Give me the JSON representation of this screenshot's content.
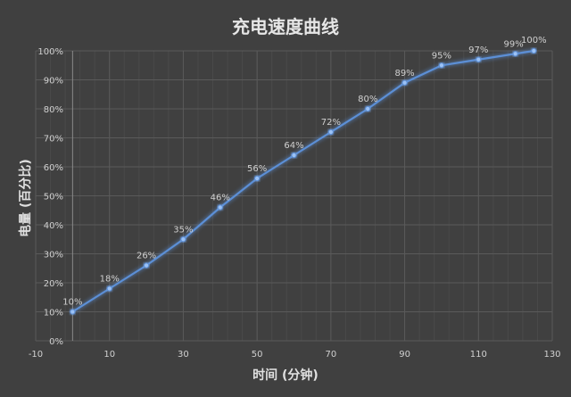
{
  "chart_data": {
    "type": "line",
    "title": "充电速度曲线",
    "xlabel": "时间 (分钟)",
    "ylabel": "电量 (百分比)",
    "x": [
      0,
      10,
      20,
      30,
      40,
      50,
      60,
      70,
      80,
      90,
      100,
      110,
      120,
      125
    ],
    "series": [
      {
        "name": "电量",
        "values": [
          10,
          18,
          26,
          35,
          46,
          56,
          64,
          72,
          80,
          89,
          95,
          97,
          99,
          100
        ],
        "labels": [
          "10%",
          "18%",
          "26%",
          "35%",
          "46%",
          "56%",
          "64%",
          "72%",
          "80%",
          "89%",
          "95%",
          "97%",
          "99%",
          "100%"
        ],
        "color": "#5b8fd6"
      }
    ],
    "xlim": [
      -10,
      130
    ],
    "ylim": [
      0,
      100
    ],
    "xticks": [
      -10,
      10,
      30,
      50,
      70,
      90,
      110,
      130
    ],
    "yticks": [
      "0%",
      "10%",
      "20%",
      "30%",
      "40%",
      "50%",
      "60%",
      "70%",
      "80%",
      "90%",
      "100%"
    ],
    "grid": true,
    "legend": "none"
  },
  "colors": {
    "background": "#404040",
    "grid_major": "#5a5a5a",
    "grid_minor": "#4a4a4a",
    "text": "#d0d0d0",
    "line": "#5b8fd6"
  }
}
